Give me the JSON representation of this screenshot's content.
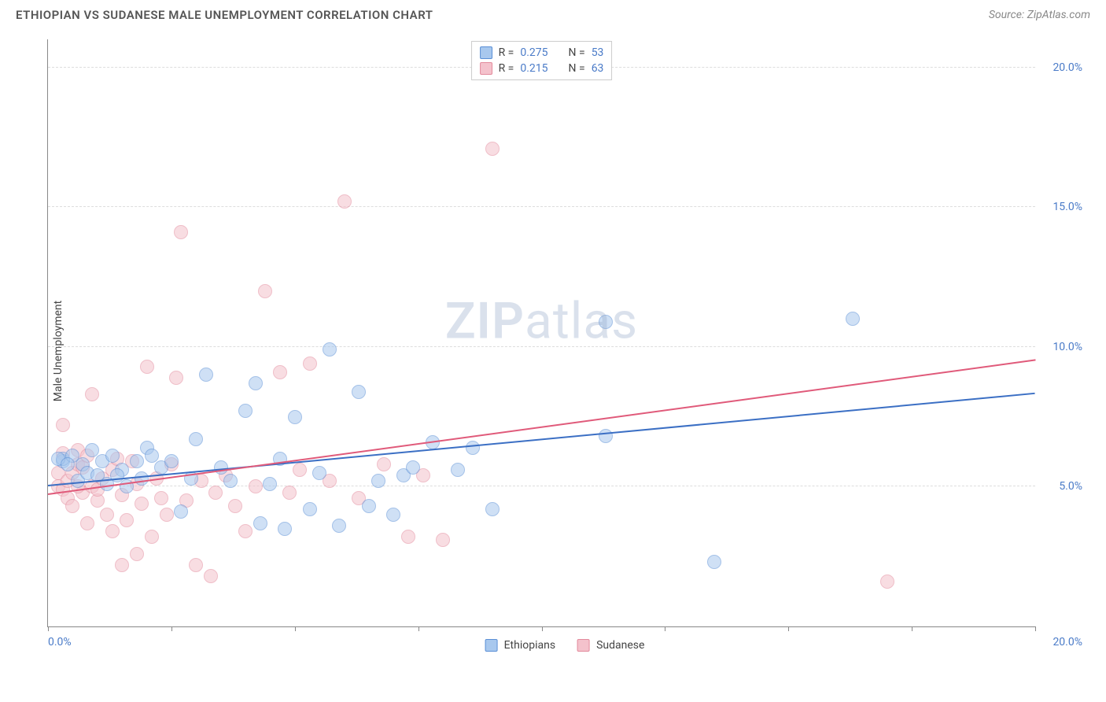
{
  "header": {
    "title": "ETHIOPIAN VS SUDANESE MALE UNEMPLOYMENT CORRELATION CHART",
    "source": "Source: ZipAtlas.com"
  },
  "y_axis_label": "Male Unemployment",
  "watermark": {
    "part1": "ZIP",
    "part2": "atlas"
  },
  "chart": {
    "type": "scatter",
    "xlim": [
      0,
      20
    ],
    "ylim": [
      0,
      21
    ],
    "x_ticks": [
      0,
      2.5,
      5,
      7.5,
      10,
      12.5,
      15,
      17.5,
      20
    ],
    "x_tick_labels_shown": {
      "0": "0.0%",
      "20": "20.0%"
    },
    "y_ticks": [
      5,
      10,
      15,
      20
    ],
    "y_tick_labels": {
      "5": "5.0%",
      "10": "10.0%",
      "15": "15.0%",
      "20": "20.0%"
    },
    "background_color": "#ffffff",
    "grid_color": "#dddddd",
    "axis_color": "#888888",
    "tick_label_color": "#4a7bc8",
    "marker_radius": 9,
    "marker_opacity": 0.55,
    "marker_border_width": 1.2,
    "series": {
      "ethiopians": {
        "label": "Ethiopians",
        "fill_color": "#a8c8ee",
        "border_color": "#5a8fd6",
        "R": "0.275",
        "N": "53",
        "trend": {
          "x1": 0,
          "y1": 5.0,
          "x2": 20,
          "y2": 8.3,
          "color": "#3b6fc4",
          "width": 2
        },
        "points": [
          [
            0.3,
            5.9
          ],
          [
            0.3,
            6.0
          ],
          [
            0.5,
            6.1
          ],
          [
            0.6,
            5.2
          ],
          [
            0.7,
            5.8
          ],
          [
            0.8,
            5.5
          ],
          [
            0.9,
            6.3
          ],
          [
            1.0,
            5.4
          ],
          [
            1.1,
            5.9
          ],
          [
            1.2,
            5.1
          ],
          [
            1.3,
            6.1
          ],
          [
            1.5,
            5.6
          ],
          [
            1.6,
            5.0
          ],
          [
            1.8,
            5.9
          ],
          [
            1.9,
            5.3
          ],
          [
            2.0,
            6.4
          ],
          [
            2.1,
            6.1
          ],
          [
            2.3,
            5.7
          ],
          [
            2.5,
            5.9
          ],
          [
            2.7,
            4.1
          ],
          [
            3.0,
            6.7
          ],
          [
            3.2,
            9.0
          ],
          [
            3.5,
            5.7
          ],
          [
            3.7,
            5.2
          ],
          [
            4.0,
            7.7
          ],
          [
            4.2,
            8.7
          ],
          [
            4.3,
            3.7
          ],
          [
            4.5,
            5.1
          ],
          [
            4.7,
            6.0
          ],
          [
            4.8,
            3.5
          ],
          [
            5.0,
            7.5
          ],
          [
            5.3,
            4.2
          ],
          [
            5.5,
            5.5
          ],
          [
            5.7,
            9.9
          ],
          [
            5.9,
            3.6
          ],
          [
            6.3,
            8.4
          ],
          [
            6.5,
            4.3
          ],
          [
            6.7,
            5.2
          ],
          [
            7.0,
            4.0
          ],
          [
            7.2,
            5.4
          ],
          [
            7.4,
            5.7
          ],
          [
            7.8,
            6.6
          ],
          [
            8.3,
            5.6
          ],
          [
            8.6,
            6.4
          ],
          [
            9.0,
            4.2
          ],
          [
            11.3,
            6.8
          ],
          [
            11.3,
            10.9
          ],
          [
            13.5,
            2.3
          ],
          [
            16.3,
            11.0
          ],
          [
            0.2,
            6.0
          ],
          [
            0.4,
            5.8
          ],
          [
            1.4,
            5.4
          ],
          [
            2.9,
            5.3
          ]
        ]
      },
      "sudanese": {
        "label": "Sudanese",
        "fill_color": "#f4c2cc",
        "border_color": "#e38a9c",
        "R": "0.215",
        "N": "63",
        "trend": {
          "x1": 0,
          "y1": 4.7,
          "x2": 20,
          "y2": 9.5,
          "color": "#e05a7a",
          "width": 2
        },
        "points": [
          [
            0.2,
            5.0
          ],
          [
            0.2,
            5.5
          ],
          [
            0.3,
            4.9
          ],
          [
            0.3,
            7.2
          ],
          [
            0.4,
            5.2
          ],
          [
            0.4,
            4.6
          ],
          [
            0.5,
            5.5
          ],
          [
            0.5,
            4.3
          ],
          [
            0.6,
            5.8
          ],
          [
            0.6,
            6.3
          ],
          [
            0.7,
            4.8
          ],
          [
            0.7,
            5.7
          ],
          [
            0.8,
            3.7
          ],
          [
            0.8,
            6.1
          ],
          [
            0.9,
            5.0
          ],
          [
            0.9,
            8.3
          ],
          [
            1.0,
            4.5
          ],
          [
            1.0,
            4.9
          ],
          [
            1.1,
            5.3
          ],
          [
            1.2,
            4.0
          ],
          [
            1.3,
            3.4
          ],
          [
            1.3,
            5.6
          ],
          [
            1.4,
            6.0
          ],
          [
            1.5,
            2.2
          ],
          [
            1.5,
            4.7
          ],
          [
            1.6,
            3.8
          ],
          [
            1.7,
            5.9
          ],
          [
            1.8,
            2.6
          ],
          [
            1.8,
            5.1
          ],
          [
            1.9,
            4.4
          ],
          [
            2.0,
            9.3
          ],
          [
            2.1,
            3.2
          ],
          [
            2.2,
            5.3
          ],
          [
            2.3,
            4.6
          ],
          [
            2.4,
            4.0
          ],
          [
            2.5,
            5.8
          ],
          [
            2.6,
            8.9
          ],
          [
            2.7,
            14.1
          ],
          [
            2.8,
            4.5
          ],
          [
            3.0,
            2.2
          ],
          [
            3.1,
            5.2
          ],
          [
            3.3,
            1.8
          ],
          [
            3.4,
            4.8
          ],
          [
            3.6,
            5.4
          ],
          [
            3.8,
            4.3
          ],
          [
            4.0,
            3.4
          ],
          [
            4.2,
            5.0
          ],
          [
            4.4,
            12.0
          ],
          [
            4.7,
            9.1
          ],
          [
            4.9,
            4.8
          ],
          [
            5.1,
            5.6
          ],
          [
            5.3,
            9.4
          ],
          [
            5.7,
            5.2
          ],
          [
            6.0,
            15.2
          ],
          [
            6.3,
            4.6
          ],
          [
            6.8,
            5.8
          ],
          [
            7.3,
            3.2
          ],
          [
            7.6,
            5.4
          ],
          [
            8.0,
            3.1
          ],
          [
            9.0,
            17.1
          ],
          [
            17.0,
            1.6
          ],
          [
            0.3,
            6.2
          ],
          [
            0.6,
            5.0
          ]
        ]
      }
    }
  },
  "legend_top": {
    "rows": [
      {
        "swatch": "#a8c8ee",
        "swatch_border": "#5a8fd6",
        "r_label": "R =",
        "r_val": "0.275",
        "n_label": "N =",
        "n_val": "53"
      },
      {
        "swatch": "#f4c2cc",
        "swatch_border": "#e38a9c",
        "r_label": "R =",
        "r_val": "0.215",
        "n_label": "N =",
        "n_val": "63"
      }
    ]
  },
  "legend_bottom": {
    "items": [
      {
        "swatch": "#a8c8ee",
        "swatch_border": "#5a8fd6",
        "label": "Ethiopians"
      },
      {
        "swatch": "#f4c2cc",
        "swatch_border": "#e38a9c",
        "label": "Sudanese"
      }
    ]
  }
}
